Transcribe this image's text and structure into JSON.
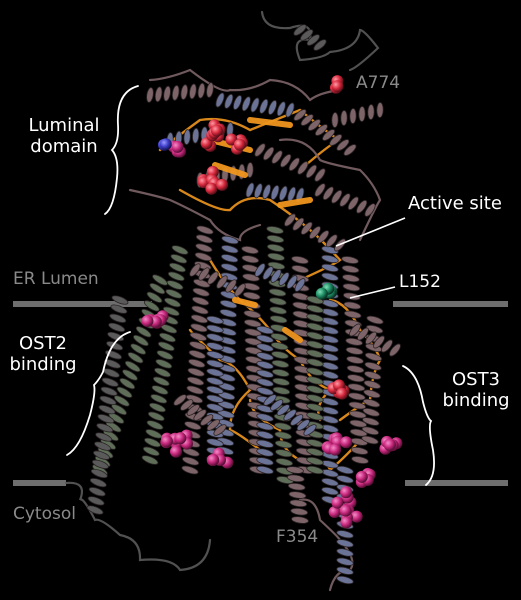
{
  "labels": {
    "luminal_domain": [
      "Luminal",
      "domain"
    ],
    "active_site": "Active site",
    "er_lumen": "ER Lumen",
    "l152": "L152",
    "ost2_binding": [
      "OST2",
      "binding"
    ],
    "ost3_binding": [
      "OST3",
      "binding"
    ],
    "cytosol": "Cytosol",
    "f354": "F354",
    "a774": "A774"
  },
  "colors": {
    "background": "#000000",
    "membrane_line": "#6e6e6e",
    "label_white": "#ffffff",
    "label_grey": "#8a8a8a",
    "helix_mauve": "#7d6468",
    "helix_blue": "#6b7396",
    "helix_green": "#5f6e58",
    "helix_grey": "#5a5a5a",
    "loop_orange": "#f0961e",
    "sphere_magenta": "#c8287d",
    "sphere_red": "#d7283c",
    "sphere_blue": "#3c3cc8",
    "sphere_teal": "#1e8c64"
  }
}
